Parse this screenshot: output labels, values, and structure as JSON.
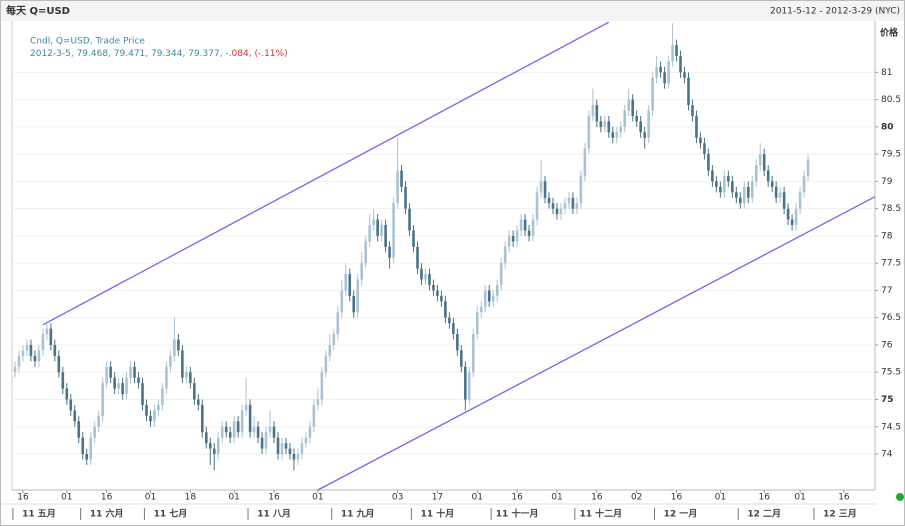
{
  "chart_data": {
    "type": "candlestick",
    "title": "每天 Q=USD",
    "date_range": "2011-5-12 - 2012-3-29 (NYC)",
    "y_label": "价格",
    "legend": {
      "label": "Cndl, Q=USD, Trade Price",
      "info": "2012-3-5, 79.468, 79.471, 79.344, 79.377,",
      "change": "-.084, (-.11%)"
    },
    "up_color": "#aac3d4",
    "down_color": "#4b7387",
    "trendline_color": "#6b6bf0",
    "grid": true,
    "xlim": [
      -0.75,
      215.8
    ],
    "ylim": [
      73.34,
      81.96
    ],
    "yticks": [
      74,
      74.5,
      75,
      75.5,
      76,
      76.5,
      77,
      77.5,
      78,
      78.5,
      79,
      79.5,
      80,
      80.5,
      81
    ],
    "xticks": [
      {
        "value": 2,
        "label": "16"
      },
      {
        "value": 13,
        "label": "01"
      },
      {
        "value": 23,
        "label": "16"
      },
      {
        "value": 34,
        "label": "01"
      },
      {
        "value": 44,
        "label": "18"
      },
      {
        "value": 55,
        "label": "01"
      },
      {
        "value": 65,
        "label": "16"
      },
      {
        "value": 76,
        "label": "01"
      },
      {
        "value": 96,
        "label": "03"
      },
      {
        "value": 106,
        "label": "17"
      },
      {
        "value": 116,
        "label": "01"
      },
      {
        "value": 126,
        "label": "16"
      },
      {
        "value": 136,
        "label": "01"
      },
      {
        "value": 146,
        "label": "16"
      },
      {
        "value": 156,
        "label": "02"
      },
      {
        "value": 166,
        "label": "16"
      },
      {
        "value": 177,
        "label": "01"
      },
      {
        "value": 188,
        "label": "16"
      },
      {
        "value": 197,
        "label": "01"
      },
      {
        "value": 208,
        "label": "16"
      }
    ],
    "month_ticks": [
      {
        "value": 6,
        "label": "11 五月"
      },
      {
        "value": 23,
        "label": "11 六月"
      },
      {
        "value": 39,
        "label": "11 七月"
      },
      {
        "value": 65,
        "label": "11 八月"
      },
      {
        "value": 86,
        "label": "11 九月"
      },
      {
        "value": 106,
        "label": "11 十月"
      },
      {
        "value": 126,
        "label": "11 十一月"
      },
      {
        "value": 147,
        "label": "11 十二月"
      },
      {
        "value": 167,
        "label": "12 一月"
      },
      {
        "value": 188,
        "label": "12 二月"
      },
      {
        "value": 207,
        "label": "12 三月"
      }
    ],
    "trendlines": [
      {
        "x": [
          7,
          149
        ],
        "y": [
          76.37,
          81.92
        ]
      },
      {
        "x": [
          76,
          215.8
        ],
        "y": [
          73.34,
          78.72
        ]
      }
    ],
    "open": [
      75.5,
      75.6,
      75.8,
      75.9,
      76.0,
      75.8,
      75.7,
      75.9,
      76.2,
      76.3,
      76.0,
      75.8,
      75.5,
      75.2,
      75.0,
      74.8,
      74.6,
      74.3,
      74.0,
      73.9,
      74.3,
      74.5,
      74.7,
      75.3,
      75.6,
      75.4,
      75.2,
      75.3,
      75.1,
      75.4,
      75.6,
      75.4,
      75.3,
      74.9,
      74.7,
      74.6,
      74.8,
      74.9,
      75.2,
      75.6,
      75.8,
      76.1,
      75.9,
      75.4,
      75.5,
      75.3,
      75.0,
      74.9,
      74.4,
      74.2,
      74.1,
      74.0,
      74.3,
      74.5,
      74.4,
      74.3,
      74.6,
      74.4,
      74.8,
      74.9,
      74.4,
      74.5,
      74.3,
      74.1,
      74.4,
      74.5,
      74.3,
      74.0,
      74.2,
      74.1,
      74.0,
      73.9,
      74.0,
      74.2,
      74.3,
      74.5,
      74.9,
      75.0,
      75.5,
      75.8,
      76.0,
      76.2,
      76.6,
      77.0,
      77.3,
      76.9,
      76.6,
      77.2,
      77.5,
      77.9,
      78.2,
      78.3,
      78.0,
      78.2,
      77.8,
      77.6,
      78.6,
      79.2,
      78.9,
      78.5,
      78.1,
      77.8,
      77.4,
      77.2,
      77.3,
      77.1,
      77.0,
      76.9,
      76.8,
      76.5,
      76.4,
      76.2,
      75.9,
      75.6,
      75.0,
      75.5,
      76.2,
      76.6,
      76.7,
      77.0,
      76.8,
      76.9,
      77.1,
      77.5,
      77.8,
      78.0,
      77.9,
      78.1,
      78.3,
      78.1,
      78.0,
      78.3,
      78.8,
      79.0,
      78.7,
      78.6,
      78.5,
      78.4,
      78.5,
      78.6,
      78.7,
      78.5,
      78.6,
      79.1,
      79.6,
      80.2,
      80.4,
      80.1,
      80.0,
      80.1,
      79.9,
      79.8,
      79.9,
      80.0,
      80.3,
      80.5,
      80.2,
      80.1,
      79.9,
      79.8,
      80.3,
      80.9,
      81.1,
      81.0,
      80.8,
      81.2,
      81.5,
      81.3,
      81.0,
      80.9,
      80.4,
      80.2,
      79.8,
      79.7,
      79.5,
      79.2,
      79.0,
      78.9,
      78.8,
      79.1,
      79.0,
      78.8,
      78.7,
      78.6,
      78.9,
      78.7,
      79.0,
      79.3,
      79.5,
      79.2,
      79.0,
      78.9,
      78.7,
      78.8,
      78.5,
      78.3,
      78.2,
      78.5,
      78.8,
      79.1
    ],
    "high": [
      75.7,
      75.9,
      76.0,
      76.1,
      76.1,
      75.9,
      76.0,
      76.3,
      76.4,
      76.4,
      76.1,
      75.9,
      75.6,
      75.3,
      75.1,
      74.9,
      74.7,
      74.4,
      74.1,
      74.4,
      74.6,
      74.8,
      75.4,
      75.7,
      75.7,
      75.5,
      75.4,
      75.4,
      75.5,
      75.7,
      75.7,
      75.5,
      75.4,
      75.0,
      74.8,
      74.9,
      75.0,
      75.3,
      75.7,
      75.9,
      76.5,
      76.2,
      76.0,
      75.6,
      75.6,
      75.4,
      75.1,
      75.0,
      74.5,
      74.3,
      74.2,
      74.4,
      74.6,
      74.6,
      74.5,
      74.7,
      74.7,
      74.9,
      75.4,
      75.0,
      74.7,
      74.6,
      74.4,
      74.5,
      74.8,
      74.6,
      74.4,
      74.3,
      74.3,
      74.2,
      74.1,
      74.1,
      74.3,
      74.4,
      74.6,
      75.0,
      75.2,
      75.6,
      75.9,
      76.2,
      76.3,
      76.7,
      77.2,
      77.5,
      77.4,
      77.0,
      77.3,
      77.7,
      78.0,
      78.4,
      78.5,
      78.4,
      78.3,
      78.3,
      77.9,
      78.7,
      79.8,
      79.3,
      79.0,
      78.6,
      78.2,
      77.9,
      77.5,
      77.4,
      77.4,
      77.2,
      77.1,
      77.0,
      76.9,
      76.6,
      76.5,
      76.3,
      76.0,
      75.7,
      75.6,
      76.3,
      76.7,
      76.8,
      77.1,
      77.1,
      77.0,
      77.2,
      77.6,
      77.9,
      78.1,
      78.1,
      78.2,
      78.4,
      78.4,
      78.2,
      78.4,
      78.9,
      79.4,
      79.1,
      78.8,
      78.7,
      78.6,
      78.6,
      78.7,
      78.8,
      78.8,
      78.7,
      79.2,
      79.7,
      80.3,
      80.7,
      80.5,
      80.2,
      80.2,
      80.2,
      80.0,
      80.0,
      80.1,
      80.4,
      80.7,
      80.6,
      80.3,
      80.2,
      80.0,
      80.4,
      81.0,
      81.3,
      81.2,
      81.1,
      81.3,
      81.9,
      81.6,
      81.4,
      81.1,
      81.0,
      80.5,
      80.3,
      79.9,
      79.8,
      79.6,
      79.3,
      79.1,
      79.0,
      79.2,
      79.2,
      79.1,
      78.9,
      78.8,
      79.0,
      79.0,
      79.1,
      79.4,
      79.7,
      79.6,
      79.3,
      79.1,
      79.0,
      78.9,
      78.9,
      78.6,
      78.4,
      78.6,
      78.9,
      79.2,
      79.5
    ],
    "low": [
      75.4,
      75.5,
      75.7,
      75.8,
      75.7,
      75.6,
      75.6,
      75.8,
      76.1,
      75.9,
      75.7,
      75.4,
      75.1,
      74.9,
      74.7,
      74.5,
      74.2,
      73.9,
      73.8,
      73.8,
      74.2,
      74.4,
      74.6,
      75.2,
      75.3,
      75.1,
      75.1,
      75.0,
      75.0,
      75.3,
      75.3,
      75.2,
      74.8,
      74.6,
      74.5,
      74.5,
      74.7,
      74.8,
      75.1,
      75.5,
      75.7,
      75.8,
      75.3,
      75.3,
      75.2,
      74.9,
      74.8,
      74.3,
      74.1,
      73.8,
      73.7,
      73.9,
      74.2,
      74.3,
      74.2,
      74.2,
      74.3,
      74.3,
      74.7,
      74.3,
      74.3,
      74.2,
      74.0,
      74.0,
      74.3,
      74.2,
      73.9,
      73.9,
      74.0,
      73.9,
      73.7,
      73.8,
      73.9,
      74.1,
      74.2,
      74.4,
      74.8,
      74.9,
      75.4,
      75.7,
      75.9,
      76.1,
      76.5,
      76.9,
      76.8,
      76.5,
      76.5,
      77.1,
      77.4,
      77.8,
      78.1,
      77.9,
      77.9,
      77.7,
      77.4,
      77.5,
      78.5,
      78.8,
      78.4,
      78.0,
      77.7,
      77.3,
      77.1,
      77.1,
      77.0,
      76.9,
      76.8,
      76.7,
      76.4,
      76.3,
      76.1,
      75.8,
      75.5,
      74.8,
      74.9,
      75.4,
      76.1,
      76.5,
      76.6,
      76.7,
      76.7,
      76.8,
      77.0,
      77.4,
      77.7,
      77.8,
      77.8,
      78.0,
      78.0,
      77.9,
      77.9,
      78.2,
      78.7,
      78.6,
      78.5,
      78.4,
      78.3,
      78.3,
      78.4,
      78.5,
      78.4,
      78.4,
      78.5,
      79.0,
      79.5,
      80.1,
      80.0,
      79.9,
      79.9,
      79.8,
      79.7,
      79.7,
      79.8,
      79.9,
      80.2,
      80.1,
      80.0,
      79.8,
      79.6,
      79.7,
      80.2,
      80.8,
      80.9,
      80.7,
      80.7,
      81.1,
      81.2,
      80.9,
      80.8,
      80.3,
      80.1,
      79.7,
      79.6,
      79.4,
      79.1,
      78.9,
      78.8,
      78.7,
      78.7,
      78.9,
      78.7,
      78.6,
      78.5,
      78.5,
      78.6,
      78.6,
      78.9,
      79.2,
      79.1,
      78.9,
      78.8,
      78.6,
      78.6,
      78.4,
      78.2,
      78.1,
      78.1,
      78.4,
      78.7,
      79.0
    ],
    "close": [
      75.6,
      75.8,
      75.9,
      76.0,
      75.8,
      75.7,
      75.9,
      76.2,
      76.3,
      76.0,
      75.8,
      75.5,
      75.2,
      75.0,
      74.8,
      74.6,
      74.3,
      74.0,
      73.9,
      74.3,
      74.5,
      74.7,
      75.3,
      75.6,
      75.4,
      75.2,
      75.3,
      75.1,
      75.4,
      75.6,
      75.4,
      75.3,
      74.9,
      74.7,
      74.6,
      74.8,
      74.9,
      75.2,
      75.6,
      75.8,
      76.1,
      75.9,
      75.4,
      75.5,
      75.3,
      75.0,
      74.9,
      74.4,
      74.2,
      74.1,
      74.0,
      74.3,
      74.5,
      74.4,
      74.3,
      74.6,
      74.4,
      74.8,
      74.9,
      74.4,
      74.5,
      74.3,
      74.1,
      74.4,
      74.5,
      74.3,
      74.0,
      74.2,
      74.1,
      74.0,
      73.9,
      74.0,
      74.2,
      74.3,
      74.5,
      74.9,
      75.0,
      75.5,
      75.8,
      76.0,
      76.2,
      76.6,
      77.0,
      77.3,
      76.9,
      76.6,
      77.2,
      77.5,
      77.9,
      78.2,
      78.3,
      78.0,
      78.2,
      77.8,
      77.6,
      78.6,
      79.2,
      78.9,
      78.5,
      78.1,
      77.8,
      77.4,
      77.2,
      77.3,
      77.1,
      77.0,
      76.9,
      76.8,
      76.5,
      76.4,
      76.2,
      75.9,
      75.6,
      75.0,
      75.5,
      76.2,
      76.6,
      76.7,
      77.0,
      76.8,
      76.9,
      77.1,
      77.5,
      77.8,
      78.0,
      77.9,
      78.1,
      78.3,
      78.1,
      78.0,
      78.3,
      78.8,
      79.0,
      78.7,
      78.6,
      78.5,
      78.4,
      78.5,
      78.6,
      78.7,
      78.5,
      78.6,
      79.1,
      79.6,
      80.2,
      80.4,
      80.1,
      80.0,
      80.1,
      79.9,
      79.8,
      79.9,
      80.0,
      80.3,
      80.5,
      80.2,
      80.1,
      79.9,
      79.8,
      80.3,
      80.9,
      81.1,
      81.0,
      80.8,
      81.2,
      81.5,
      81.3,
      81.0,
      80.9,
      80.4,
      80.2,
      79.8,
      79.7,
      79.5,
      79.2,
      79.0,
      78.9,
      78.8,
      79.1,
      79.0,
      78.8,
      78.7,
      78.6,
      78.9,
      78.7,
      79.0,
      79.3,
      79.5,
      79.2,
      79.0,
      78.9,
      78.7,
      78.8,
      78.5,
      78.3,
      78.2,
      78.5,
      78.8,
      79.1,
      79.4
    ]
  }
}
